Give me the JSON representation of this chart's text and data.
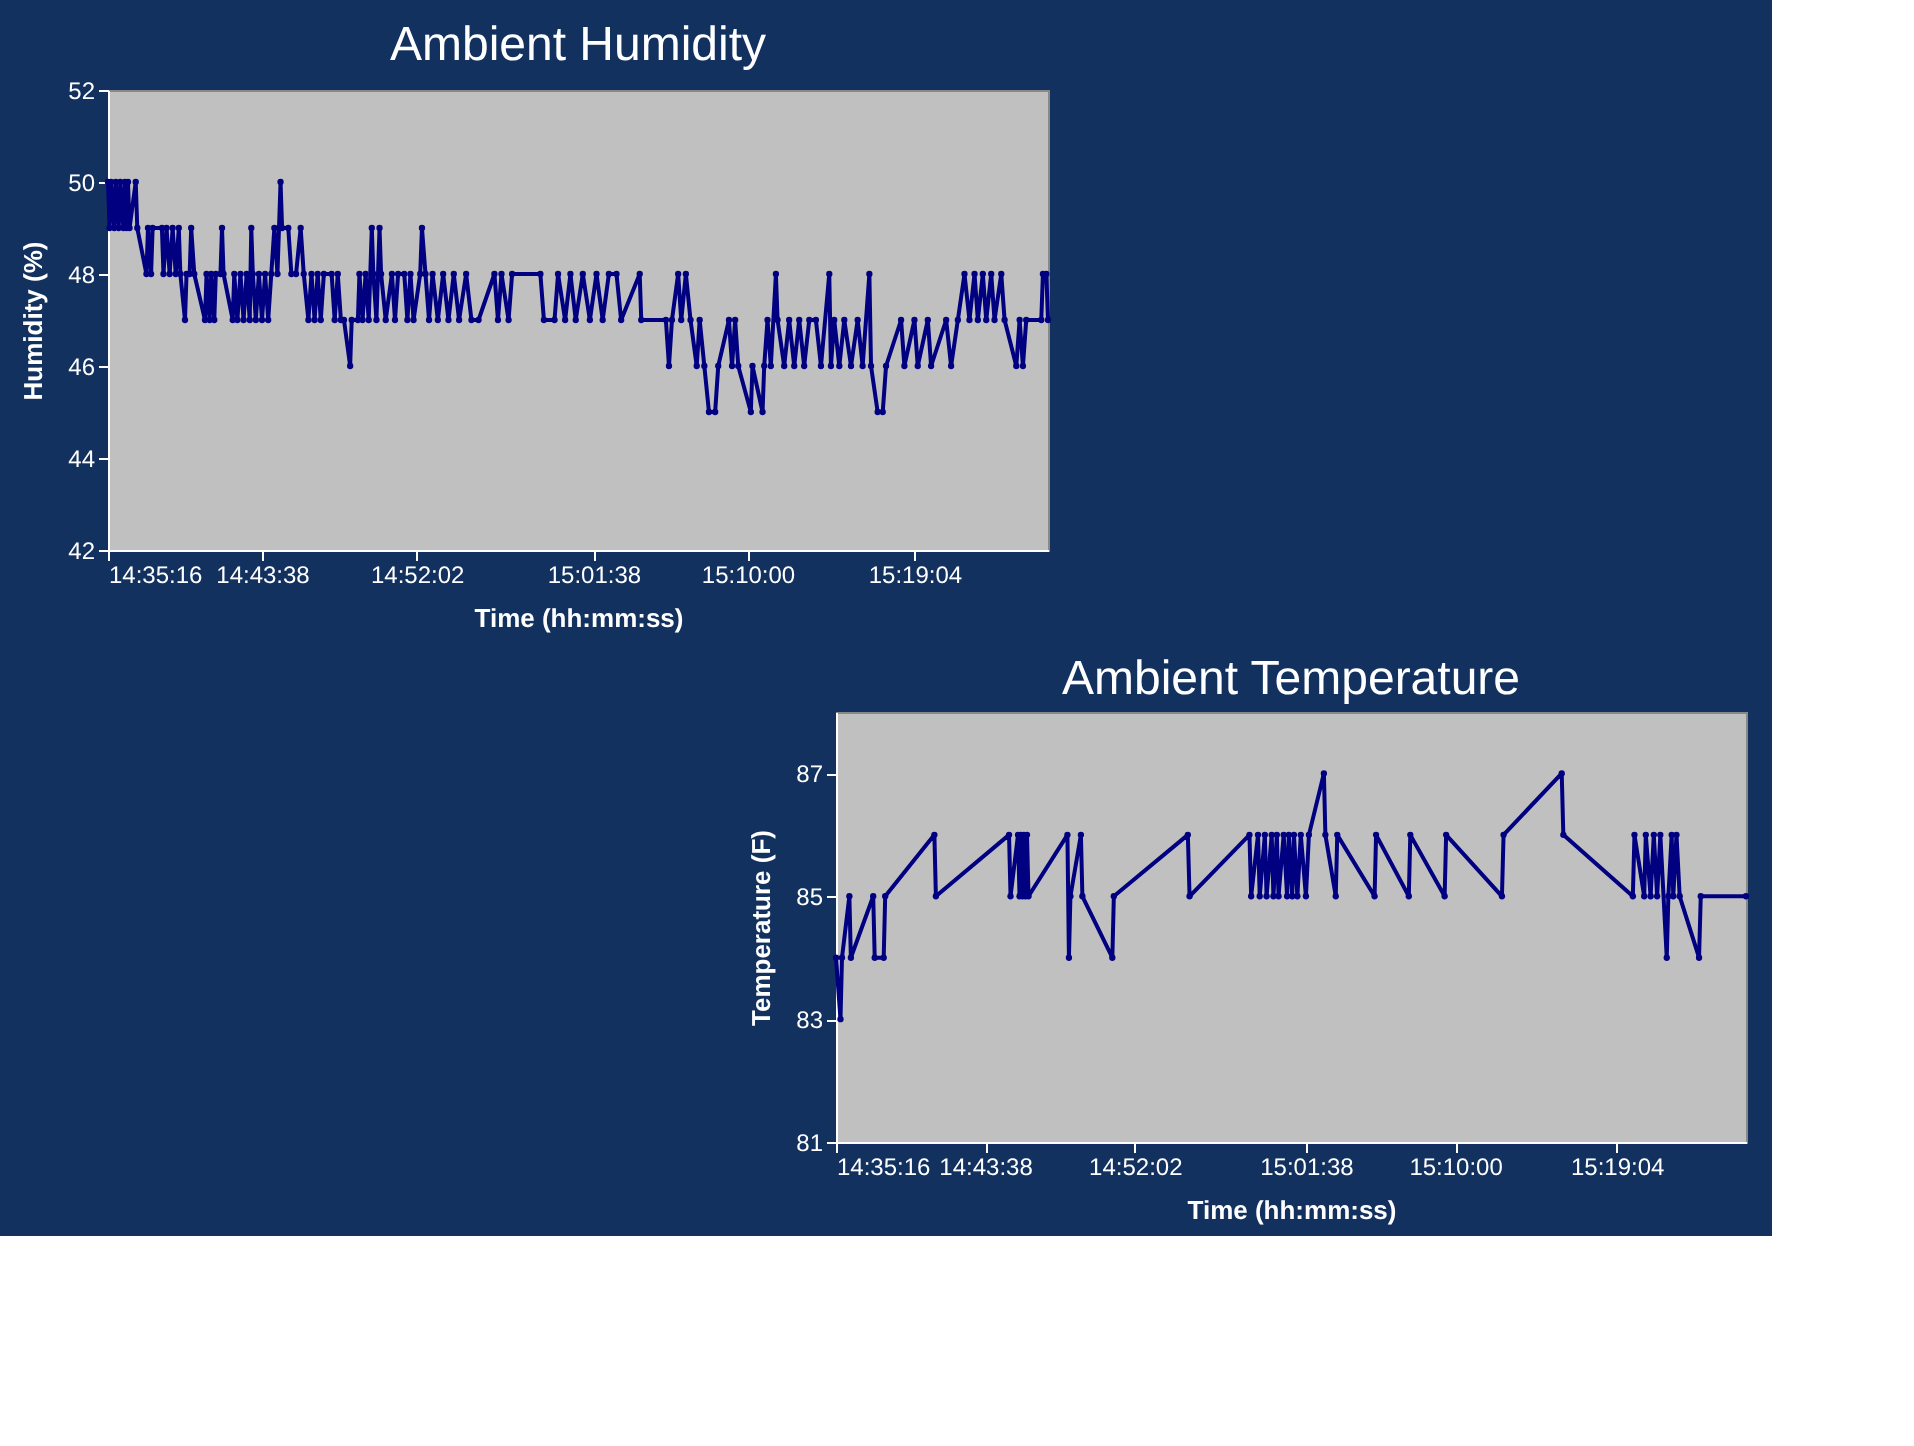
{
  "chart_data": [
    {
      "type": "line",
      "title": "Ambient Humidity",
      "xlabel": "Time (hh:mm:ss)",
      "ylabel": "Humidity (%)",
      "marker": "circle",
      "grid": false,
      "xlim": [
        14.5878,
        15.4387
      ],
      "xticks": [
        {
          "value": 14.5878,
          "label": "14:35:16"
        },
        {
          "value": 14.7272,
          "label": "14:43:38"
        },
        {
          "value": 14.8672,
          "label": "14:52:02"
        },
        {
          "value": 15.0272,
          "label": "15:01:38"
        },
        {
          "value": 15.1667,
          "label": "15:10:00"
        },
        {
          "value": 15.3178,
          "label": "15:19:04"
        }
      ],
      "ylim": [
        42,
        52
      ],
      "yticks": [
        42,
        44,
        46,
        48,
        50,
        52
      ],
      "x": [
        14.5878,
        14.5892,
        14.5906,
        14.5934,
        14.5948,
        14.5975,
        14.5989,
        14.6017,
        14.6031,
        14.6045,
        14.6059,
        14.6073,
        14.6129,
        14.6143,
        14.6226,
        14.624,
        14.6268,
        14.6282,
        14.6366,
        14.638,
        14.6408,
        14.6436,
        14.6463,
        14.6491,
        14.6519,
        14.6533,
        14.6575,
        14.6589,
        14.6617,
        14.6631,
        14.6659,
        14.6756,
        14.677,
        14.6798,
        14.6812,
        14.684,
        14.6854,
        14.6896,
        14.691,
        14.6924,
        14.7007,
        14.7021,
        14.7049,
        14.7077,
        14.7105,
        14.7133,
        14.7161,
        14.7175,
        14.7189,
        14.7216,
        14.7244,
        14.7272,
        14.73,
        14.7328,
        14.7356,
        14.7384,
        14.7412,
        14.7426,
        14.744,
        14.7454,
        14.751,
        14.7538,
        14.758,
        14.7622,
        14.765,
        14.7692,
        14.772,
        14.7748,
        14.7776,
        14.7804,
        14.7832,
        14.7902,
        14.793,
        14.7958,
        14.7986,
        14.8014,
        14.807,
        14.8084,
        14.814,
        14.8154,
        14.8182,
        14.821,
        14.8238,
        14.8266,
        14.828,
        14.8308,
        14.8336,
        14.835,
        14.8392,
        14.8448,
        14.8476,
        14.8504,
        14.856,
        14.8588,
        14.8616,
        14.8644,
        14.8704,
        14.872,
        14.8752,
        14.8784,
        14.8816,
        14.8864,
        14.8912,
        14.896,
        14.9008,
        14.9056,
        14.912,
        14.9168,
        14.9232,
        14.9376,
        14.9408,
        14.944,
        14.9504,
        14.9536,
        14.9792,
        14.9824,
        14.992,
        14.9952,
        15.0016,
        15.0064,
        15.0112,
        15.0176,
        15.024,
        15.03,
        15.0356,
        15.0412,
        15.0481,
        15.0523,
        15.0691,
        15.0705,
        15.0928,
        15.0956,
        15.0983,
        15.1039,
        15.1067,
        15.1109,
        15.1151,
        15.1207,
        15.1234,
        15.1276,
        15.1318,
        15.1374,
        15.1402,
        15.1499,
        15.1527,
        15.1555,
        15.1583,
        15.1697,
        15.1712,
        15.1803,
        15.1818,
        15.1848,
        15.1878,
        15.1924,
        15.1939,
        15.1999,
        15.2044,
        15.209,
        15.2135,
        15.218,
        15.2226,
        15.2286,
        15.2332,
        15.2407,
        15.2422,
        15.2452,
        15.2498,
        15.2543,
        15.2604,
        15.2664,
        15.2709,
        15.277,
        15.2785,
        15.2845,
        15.2891,
        15.2921,
        15.3057,
        15.3087,
        15.3178,
        15.3208,
        15.3299,
        15.3329,
        15.3465,
        15.351,
        15.3571,
        15.3631,
        15.3676,
        15.3722,
        15.3752,
        15.3797,
        15.3828,
        15.3873,
        15.3903,
        15.3964,
        15.3994,
        15.41,
        15.413,
        15.416,
        15.419,
        15.4326,
        15.4341,
        15.4372,
        15.4387
      ],
      "series": [
        {
          "color": "#000080",
          "values": [
            50,
            49,
            50,
            49,
            50,
            49,
            50,
            49,
            50,
            49,
            50,
            49,
            50,
            49,
            48,
            49,
            48,
            49,
            49,
            48,
            49,
            48,
            49,
            48,
            49,
            48,
            47,
            48,
            48,
            49,
            48,
            47,
            48,
            47,
            48,
            47,
            48,
            48,
            49,
            48,
            47,
            48,
            47,
            48,
            47,
            48,
            47,
            49,
            48,
            47,
            48,
            47,
            48,
            47,
            48,
            49,
            48,
            49,
            50,
            49,
            49,
            48,
            48,
            49,
            48,
            47,
            48,
            47,
            48,
            47,
            48,
            48,
            47,
            48,
            47,
            47,
            46,
            47,
            47,
            48,
            47,
            48,
            47,
            49,
            48,
            47,
            49,
            48,
            47,
            48,
            47,
            48,
            48,
            47,
            48,
            47,
            48,
            49,
            48,
            47,
            48,
            47,
            48,
            47,
            48,
            47,
            48,
            47,
            47,
            48,
            47,
            48,
            47,
            48,
            48,
            47,
            47,
            48,
            47,
            48,
            47,
            48,
            47,
            48,
            47,
            48,
            48,
            47,
            48,
            47,
            47,
            46,
            47,
            48,
            47,
            48,
            47,
            46,
            47,
            46,
            45,
            45,
            46,
            47,
            46,
            47,
            46,
            45,
            46,
            45,
            46,
            47,
            46,
            48,
            47,
            46,
            47,
            46,
            47,
            46,
            47,
            47,
            46,
            48,
            46,
            47,
            46,
            47,
            46,
            47,
            46,
            48,
            46,
            45,
            45,
            46,
            47,
            46,
            47,
            46,
            47,
            46,
            47,
            46,
            47,
            48,
            47,
            48,
            47,
            48,
            47,
            48,
            47,
            48,
            47,
            46,
            47,
            46,
            47,
            47,
            48,
            48,
            47
          ]
        }
      ]
    },
    {
      "type": "line",
      "title": "Ambient Temperature",
      "xlabel": "Time (hh:mm:ss)",
      "ylabel": "Temperature (F)",
      "marker": "circle",
      "grid": false,
      "xlim": [
        14.5878,
        15.4387
      ],
      "xticks": [
        {
          "value": 14.5878,
          "label": "14:35:16"
        },
        {
          "value": 14.7272,
          "label": "14:43:38"
        },
        {
          "value": 14.8672,
          "label": "14:52:02"
        },
        {
          "value": 15.0272,
          "label": "15:01:38"
        },
        {
          "value": 15.1667,
          "label": "15:10:00"
        },
        {
          "value": 15.3178,
          "label": "15:19:04"
        }
      ],
      "ylim": [
        81,
        88
      ],
      "yticks": [
        81,
        83,
        85,
        87
      ],
      "x": [
        14.5878,
        14.592,
        14.5934,
        14.6003,
        14.6017,
        14.6226,
        14.624,
        14.6324,
        14.6338,
        14.6798,
        14.6812,
        14.7496,
        14.751,
        14.758,
        14.7594,
        14.7608,
        14.7622,
        14.7636,
        14.765,
        14.7664,
        14.7678,
        14.8042,
        14.8056,
        14.807,
        14.8168,
        14.8182,
        14.8462,
        14.8476,
        14.9168,
        14.9184,
        14.9744,
        14.976,
        14.9824,
        14.984,
        14.9888,
        14.9904,
        14.9952,
        14.9968,
        15.0,
        15.0016,
        15.0064,
        15.0096,
        15.0112,
        15.0144,
        15.016,
        15.0192,
        15.0224,
        15.0272,
        15.03,
        15.044,
        15.0454,
        15.0551,
        15.0565,
        15.0914,
        15.0928,
        15.1234,
        15.1248,
        15.1569,
        15.1583,
        15.2105,
        15.212,
        15.2664,
        15.2679,
        15.3329,
        15.3344,
        15.3435,
        15.345,
        15.3495,
        15.3525,
        15.3556,
        15.3586,
        15.3646,
        15.3661,
        15.3692,
        15.3707,
        15.3737,
        15.3767,
        15.3948,
        15.3964,
        15.4387
      ],
      "series": [
        {
          "color": "#000080",
          "values": [
            84,
            83,
            84,
            85,
            84,
            85,
            84,
            84,
            85,
            86,
            85,
            86,
            85,
            86,
            85,
            86,
            85,
            86,
            85,
            86,
            85,
            86,
            84,
            85,
            86,
            85,
            84,
            85,
            86,
            85,
            86,
            85,
            86,
            85,
            86,
            85,
            86,
            85,
            86,
            85,
            86,
            85,
            86,
            85,
            86,
            85,
            86,
            85,
            86,
            87,
            86,
            85,
            86,
            85,
            86,
            85,
            86,
            85,
            86,
            85,
            86,
            87,
            86,
            85,
            86,
            85,
            86,
            85,
            86,
            85,
            86,
            84,
            85,
            86,
            85,
            86,
            85,
            84,
            85,
            85
          ]
        }
      ]
    }
  ]
}
